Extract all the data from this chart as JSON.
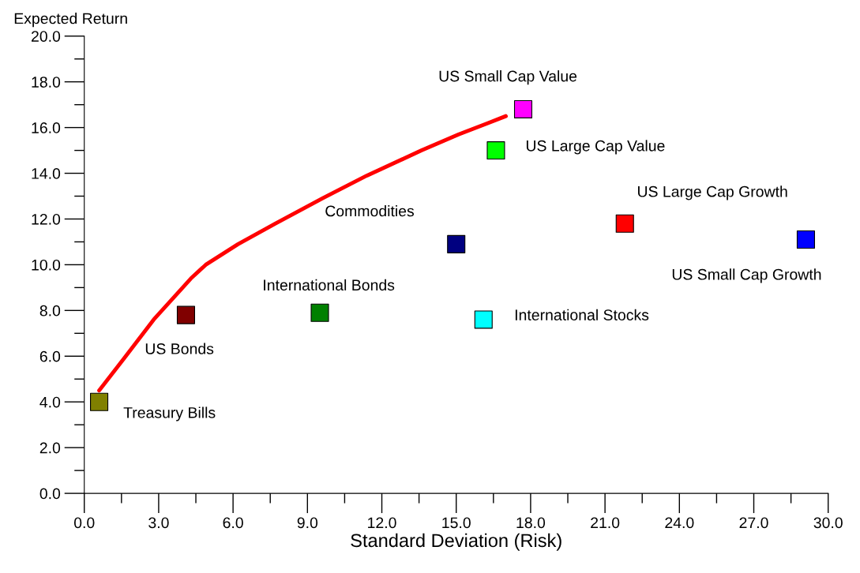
{
  "chart_data": {
    "type": "scatter",
    "xlabel": "Standard Deviation (Risk)",
    "ylabel": "Expected Return",
    "xlim": [
      0,
      30
    ],
    "ylim": [
      0,
      20
    ],
    "xticks": [
      {
        "value": 0,
        "label": "0.0"
      },
      {
        "value": 1.5,
        "label": null
      },
      {
        "value": 3,
        "label": "3.0"
      },
      {
        "value": 4.5,
        "label": null
      },
      {
        "value": 6,
        "label": "6.0"
      },
      {
        "value": 7.5,
        "label": null
      },
      {
        "value": 9,
        "label": "9.0"
      },
      {
        "value": 10.5,
        "label": null
      },
      {
        "value": 12,
        "label": "12.0"
      },
      {
        "value": 13.5,
        "label": null
      },
      {
        "value": 15,
        "label": "15.0"
      },
      {
        "value": 16.5,
        "label": null
      },
      {
        "value": 18,
        "label": "18.0"
      },
      {
        "value": 19.5,
        "label": null
      },
      {
        "value": 21,
        "label": "21.0"
      },
      {
        "value": 22.5,
        "label": null
      },
      {
        "value": 24,
        "label": "24.0"
      },
      {
        "value": 25.5,
        "label": null
      },
      {
        "value": 27,
        "label": "27.0"
      },
      {
        "value": 28.5,
        "label": null
      },
      {
        "value": 30,
        "label": "30.0"
      }
    ],
    "yticks": [
      {
        "value": 0,
        "label": "0.0"
      },
      {
        "value": 1,
        "label": null
      },
      {
        "value": 2,
        "label": "2.0"
      },
      {
        "value": 3,
        "label": null
      },
      {
        "value": 4,
        "label": "4.0"
      },
      {
        "value": 5,
        "label": null
      },
      {
        "value": 6,
        "label": "6.0"
      },
      {
        "value": 7,
        "label": null
      },
      {
        "value": 8,
        "label": "8.0"
      },
      {
        "value": 9,
        "label": null
      },
      {
        "value": 10,
        "label": "10.0"
      },
      {
        "value": 11,
        "label": null
      },
      {
        "value": 12,
        "label": "12.0"
      },
      {
        "value": 13,
        "label": null
      },
      {
        "value": 14,
        "label": "14.0"
      },
      {
        "value": 15,
        "label": null
      },
      {
        "value": 16,
        "label": "16.0"
      },
      {
        "value": 17,
        "label": null
      },
      {
        "value": 18,
        "label": "18.0"
      },
      {
        "value": 19,
        "label": null
      },
      {
        "value": 20,
        "label": "20.0"
      }
    ],
    "grid": false,
    "legend": false,
    "marker": "square",
    "series": [
      {
        "type": "line",
        "color": "#ff0000",
        "marker": "none",
        "line_style": "solid",
        "x": [
          0.6,
          1.6,
          2.8,
          4.3,
          4.9,
          6.2,
          7.7,
          9.6,
          11.4,
          13.6,
          15.1,
          16.3,
          17.0
        ],
        "values": [
          4.5,
          5.9,
          7.6,
          9.4,
          10.0,
          10.9,
          11.8,
          12.9,
          13.9,
          15.0,
          15.7,
          16.2,
          16.5
        ]
      },
      {
        "name": "Treasury Bills",
        "color": "#808000",
        "x": [
          0.6
        ],
        "values": [
          4.0
        ]
      },
      {
        "name": "US Bonds",
        "color": "#800000",
        "x": [
          4.1
        ],
        "values": [
          7.8
        ]
      },
      {
        "name": "International Bonds",
        "color": "#008000",
        "x": [
          9.5
        ],
        "values": [
          7.9
        ]
      },
      {
        "name": "Commodities",
        "color": "#000080",
        "x": [
          15.0
        ],
        "values": [
          10.9
        ]
      },
      {
        "name": "International Stocks",
        "color": "#00ffff",
        "x": [
          16.1
        ],
        "values": [
          7.6
        ]
      },
      {
        "name": "US Large Cap Value",
        "color": "#00ff00",
        "x": [
          16.6
        ],
        "values": [
          15.0
        ]
      },
      {
        "name": "US Small Cap Value",
        "color": "#ff00ff",
        "x": [
          17.7
        ],
        "values": [
          16.8
        ]
      },
      {
        "name": "US Large Cap Growth",
        "color": "#ff0000",
        "x": [
          21.8
        ],
        "values": [
          11.8
        ]
      },
      {
        "name": "US Small Cap Growth",
        "color": "#0000ff",
        "x": [
          29.1
        ],
        "values": [
          11.1
        ]
      }
    ]
  }
}
